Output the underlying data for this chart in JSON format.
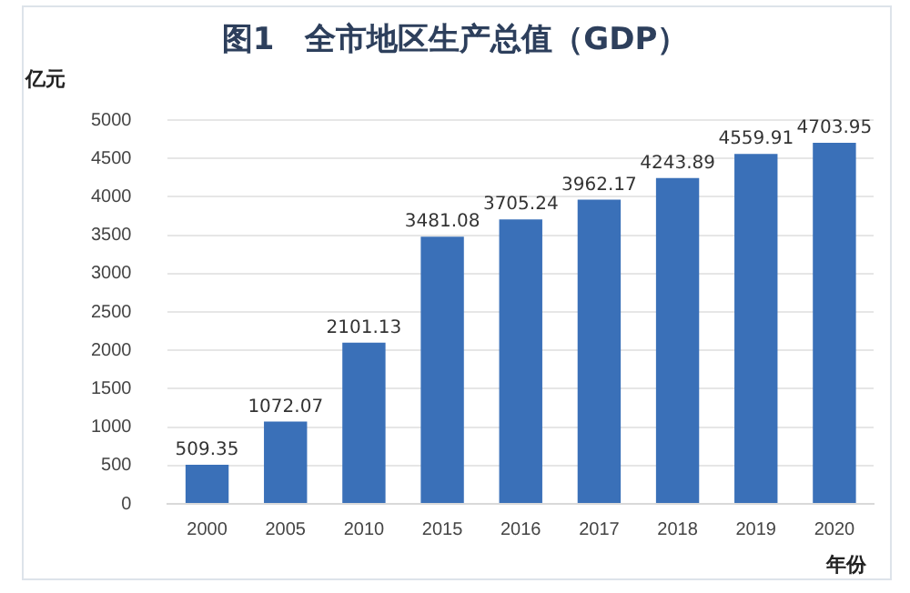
{
  "chart_data": {
    "type": "bar",
    "title": "图1　全市地区生产总值（GDP）",
    "ylabel": "亿元",
    "xlabel": "年份",
    "categories": [
      "2000",
      "2005",
      "2010",
      "2015",
      "2016",
      "2017",
      "2018",
      "2019",
      "2020"
    ],
    "values": [
      509.35,
      1072.07,
      2101.13,
      3481.08,
      3705.24,
      3962.17,
      4243.89,
      4559.91,
      4703.95
    ],
    "color": "#3a70b8",
    "ylim": [
      0,
      5000
    ],
    "yticks": [
      0,
      500,
      1000,
      1500,
      2000,
      2500,
      3000,
      3500,
      4000,
      4500,
      5000
    ],
    "grid": "y",
    "data_labels": true
  }
}
